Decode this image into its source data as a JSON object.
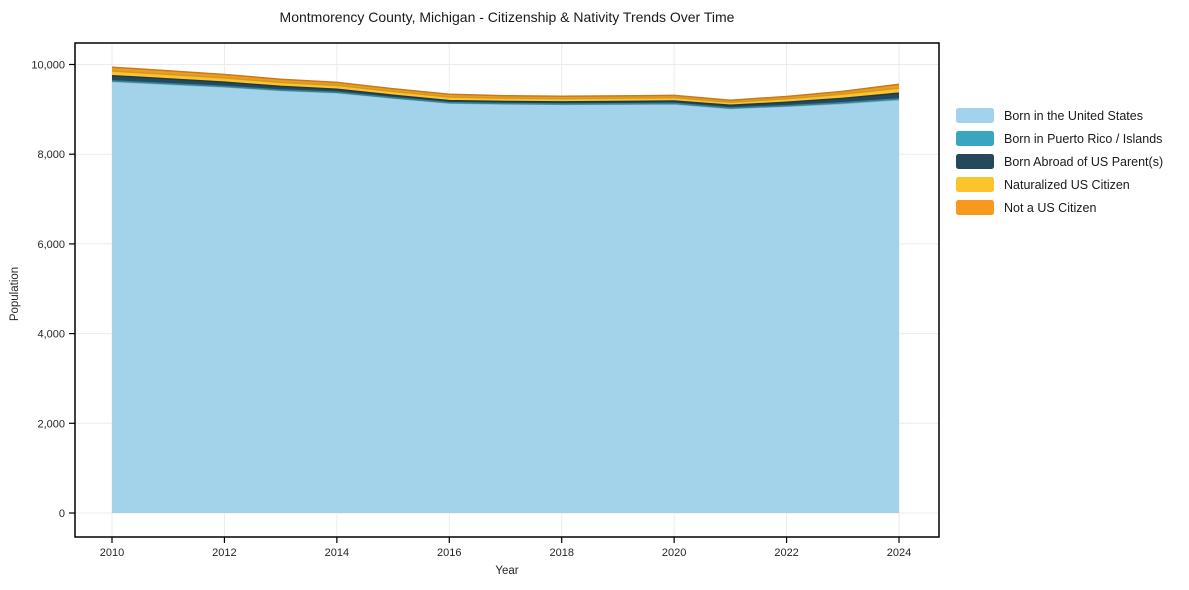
{
  "chart_data": {
    "type": "area",
    "stacked": true,
    "title": "Montmorency County, Michigan - Citizenship & Nativity Trends Over Time",
    "xlabel": "Year",
    "ylabel": "Population",
    "x": [
      2010,
      2011,
      2012,
      2013,
      2014,
      2015,
      2016,
      2017,
      2018,
      2019,
      2020,
      2021,
      2022,
      2023,
      2024
    ],
    "series": [
      {
        "name": "Born in the United States",
        "color": "#a3d3ea",
        "values": [
          9620,
          9560,
          9500,
          9420,
          9370,
          9250,
          9140,
          9120,
          9110,
          9115,
          9120,
          9020,
          9070,
          9130,
          9215
        ]
      },
      {
        "name": "Born in Puerto Rico / Islands",
        "color": "#3aa5c1",
        "values": [
          15,
          14,
          12,
          12,
          10,
          10,
          10,
          10,
          10,
          10,
          12,
          10,
          12,
          15,
          18
        ]
      },
      {
        "name": "Born Abroad of US Parent(s)",
        "color": "#25485c",
        "values": [
          115,
          105,
          95,
          80,
          70,
          55,
          45,
          45,
          45,
          50,
          55,
          60,
          75,
          100,
          130
        ]
      },
      {
        "name": "Naturalized US Citizen",
        "color": "#fcc32d",
        "values": [
          105,
          100,
          95,
          90,
          85,
          85,
          80,
          75,
          75,
          75,
          75,
          70,
          80,
          95,
          110
        ]
      },
      {
        "name": "Not a US Citizen",
        "color": "#f8981f",
        "values": [
          85,
          80,
          75,
          70,
          65,
          60,
          60,
          55,
          50,
          50,
          48,
          45,
          50,
          60,
          85
        ]
      }
    ],
    "stack_totals": [
      9940,
      9859,
      9777,
      9672,
      9600,
      9460,
      9335,
      9305,
      9290,
      9300,
      9310,
      9205,
      9287,
      9400,
      9558
    ],
    "xticks": [
      2010,
      2012,
      2014,
      2016,
      2018,
      2020,
      2022,
      2024
    ],
    "yticks": [
      0,
      2000,
      4000,
      6000,
      8000,
      10000
    ],
    "ytick_labels": [
      "0",
      "2,000",
      "4,000",
      "6,000",
      "8,000",
      "10,000"
    ],
    "ylim": [
      0,
      10000
    ],
    "grid": true,
    "legend_position": "right",
    "colors": {
      "background": "#ffffff",
      "frame": "#000000",
      "grid": "#ebebeb",
      "tick_text": "#262626"
    }
  }
}
